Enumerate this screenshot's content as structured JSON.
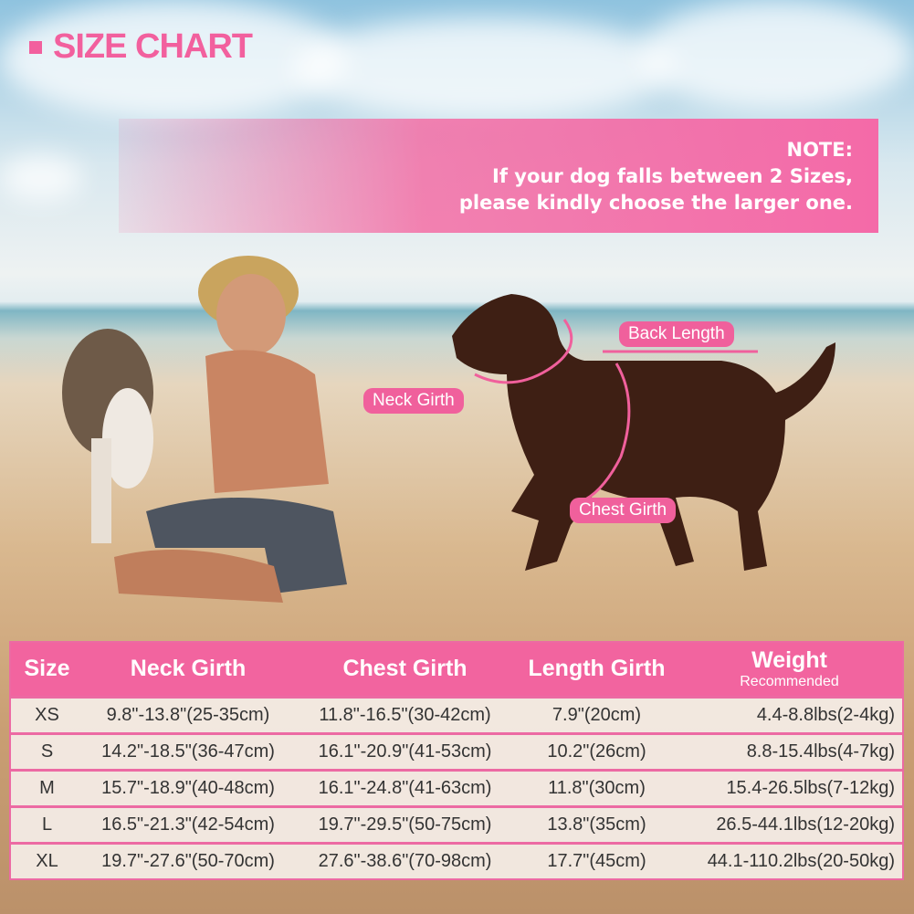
{
  "title": "SIZE CHART",
  "note": {
    "heading": "NOTE:",
    "line1": "If your dog falls between 2 Sizes,",
    "line2": "please kindly choose the larger one."
  },
  "diagram_labels": {
    "back": "Back Length",
    "neck": "Neck Girth",
    "chest": "Chest Girth"
  },
  "colors": {
    "accent": "#f2649f",
    "dog": "#3e1f14"
  },
  "table": {
    "headers": [
      "Size",
      "Neck Girth",
      "Chest Girth",
      "Length Girth",
      "Weight"
    ],
    "weight_sub": "Recommended",
    "rows": [
      [
        "XS",
        "9.8\"-13.8\"(25-35cm)",
        "11.8\"-16.5\"(30-42cm)",
        "7.9\"(20cm)",
        "4.4-8.8lbs(2-4kg)"
      ],
      [
        "S",
        "14.2\"-18.5\"(36-47cm)",
        "16.1\"-20.9\"(41-53cm)",
        "10.2\"(26cm)",
        "8.8-15.4lbs(4-7kg)"
      ],
      [
        "M",
        "15.7\"-18.9\"(40-48cm)",
        "16.1\"-24.8\"(41-63cm)",
        "11.8\"(30cm)",
        "15.4-26.5lbs(7-12kg)"
      ],
      [
        "L",
        "16.5\"-21.3\"(42-54cm)",
        "19.7\"-29.5\"(50-75cm)",
        "13.8\"(35cm)",
        "26.5-44.1lbs(12-20kg)"
      ],
      [
        "XL",
        "19.7\"-27.6\"(50-70cm)",
        "27.6\"-38.6\"(70-98cm)",
        "17.7\"(45cm)",
        "44.1-110.2lbs(20-50kg)"
      ]
    ]
  }
}
